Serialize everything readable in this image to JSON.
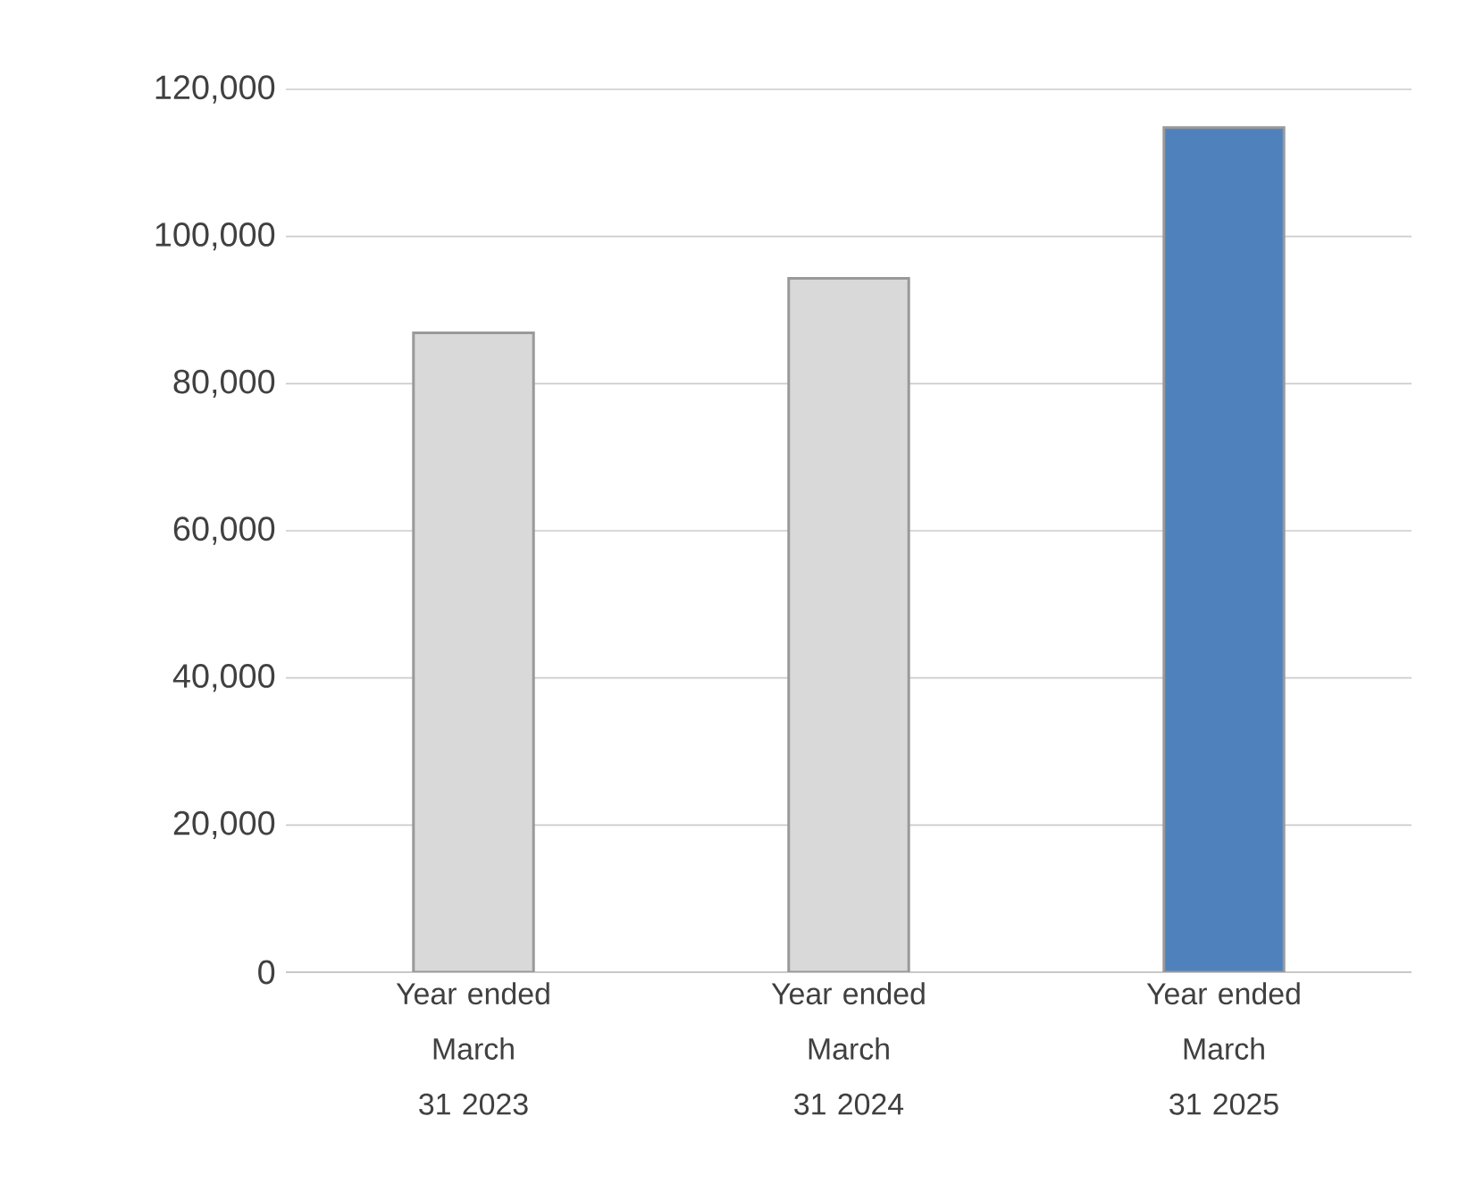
{
  "chart_data": {
    "type": "bar",
    "categories": [
      "Year ended March 31 2023",
      "Year ended March 31 2024",
      "Year ended March 31 2025"
    ],
    "values": [
      86900,
      94300,
      114800
    ],
    "colors": [
      "#d9d9d9",
      "#d9d9d9",
      "#4f81bd"
    ],
    "ylim": [
      0,
      120000
    ],
    "yticks": [
      {
        "value": 0,
        "label": "0"
      },
      {
        "value": 20000,
        "label": "20,000"
      },
      {
        "value": 40000,
        "label": "40,000"
      },
      {
        "value": 60000,
        "label": "60,000"
      },
      {
        "value": 80000,
        "label": "80,000"
      },
      {
        "value": 100000,
        "label": "100,000"
      },
      {
        "value": 120000,
        "label": "120,000"
      }
    ],
    "grid": "y"
  }
}
